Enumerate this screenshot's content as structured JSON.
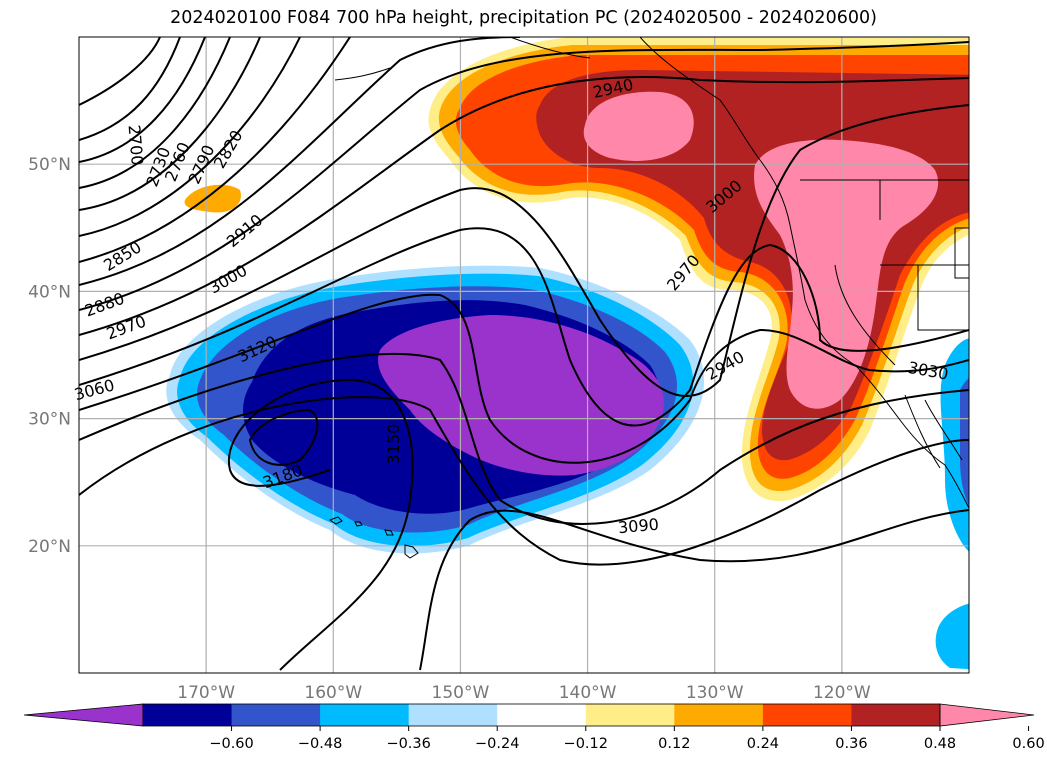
{
  "title": "2024020100 F084 700 hPa height, precipitation PC (2024020500 - 2024020600)",
  "map": {
    "lon_range": [
      -180,
      -110
    ],
    "lat_range": [
      10,
      60
    ],
    "lon_ticks": [
      {
        "value": -170,
        "label": "170°W"
      },
      {
        "value": -160,
        "label": "160°W"
      },
      {
        "value": -150,
        "label": "150°W"
      },
      {
        "value": -140,
        "label": "140°W"
      },
      {
        "value": -130,
        "label": "130°W"
      },
      {
        "value": -120,
        "label": "120°W"
      }
    ],
    "lat_ticks": [
      {
        "value": 20,
        "label": "20°N"
      },
      {
        "value": 30,
        "label": "30°N"
      },
      {
        "value": 40,
        "label": "40°N"
      },
      {
        "value": 50,
        "label": "50°N"
      }
    ],
    "grid": true
  },
  "colorbar": {
    "colors": [
      "#9933cc",
      "#000099",
      "#3355cc",
      "#00bbff",
      "#b0e0ff",
      "#ffffff",
      "#ffee88",
      "#ffaa00",
      "#ff4400",
      "#b22222",
      "#ff88aa"
    ],
    "tick_values": [
      -0.6,
      -0.48,
      -0.36,
      -0.24,
      -0.12,
      0.12,
      0.24,
      0.36,
      0.48,
      0.6
    ],
    "tick_labels": [
      "−0.60",
      "−0.48",
      "−0.36",
      "−0.24",
      "−0.12",
      "0.12",
      "0.24",
      "0.36",
      "0.48",
      "0.60"
    ],
    "extend": "both",
    "orientation": "horizontal"
  },
  "contour_labels": [
    {
      "text": "2700",
      "lon": -175.5,
      "lat": 51.5,
      "angle": 85
    },
    {
      "text": "2730",
      "lon": -173.8,
      "lat": 49.8,
      "angle": -70
    },
    {
      "text": "2760",
      "lon": -172.3,
      "lat": 50.2,
      "angle": -68
    },
    {
      "text": "2790",
      "lon": -170.4,
      "lat": 50.0,
      "angle": -66
    },
    {
      "text": "2820",
      "lon": -168.3,
      "lat": 51.2,
      "angle": -60
    },
    {
      "text": "2850",
      "lon": -176.6,
      "lat": 42.8,
      "angle": -32
    },
    {
      "text": "2880",
      "lon": -178.0,
      "lat": 39.0,
      "angle": -20
    },
    {
      "text": "2910",
      "lon": -167.0,
      "lat": 44.8,
      "angle": -40
    },
    {
      "text": "2940",
      "lon": -138.0,
      "lat": 56.0,
      "angle": -12
    },
    {
      "text": "2940",
      "lon": -129.2,
      "lat": 34.2,
      "angle": -30
    },
    {
      "text": "2970",
      "lon": -176.3,
      "lat": 37.2,
      "angle": -20
    },
    {
      "text": "2970",
      "lon": -132.5,
      "lat": 41.5,
      "angle": -50
    },
    {
      "text": "3000",
      "lon": -168.3,
      "lat": 41.0,
      "angle": -30
    },
    {
      "text": "3000",
      "lon": -129.3,
      "lat": 47.5,
      "angle": -40
    },
    {
      "text": "3030",
      "lon": -113.2,
      "lat": 33.8,
      "angle": 10
    },
    {
      "text": "3060",
      "lon": -178.8,
      "lat": 32.3,
      "angle": -15
    },
    {
      "text": "3090",
      "lon": -136.0,
      "lat": 21.6,
      "angle": -5
    },
    {
      "text": "3120",
      "lon": -166.0,
      "lat": 35.5,
      "angle": -25
    },
    {
      "text": "3150",
      "lon": -155.3,
      "lat": 28.0,
      "angle": -90
    },
    {
      "text": "3180",
      "lon": -164.0,
      "lat": 25.5,
      "angle": -20
    }
  ]
}
